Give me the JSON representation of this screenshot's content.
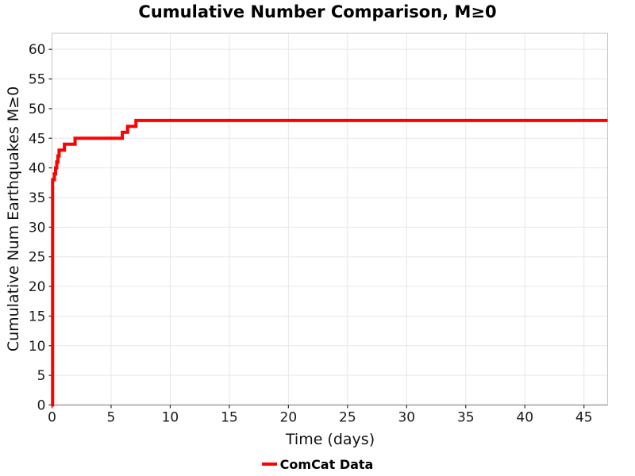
{
  "chart_data": {
    "type": "line",
    "step": "post",
    "title": "Cumulative Number Comparison, M≥0",
    "xlabel": "Time (days)",
    "ylabel": "Cumulative Num Earthquakes M≥0",
    "xlim": [
      0,
      47
    ],
    "ylim": [
      0,
      62.7
    ],
    "xticks": [
      0,
      5,
      10,
      15,
      20,
      25,
      30,
      35,
      40,
      45
    ],
    "yticks": [
      0,
      5,
      10,
      15,
      20,
      25,
      30,
      35,
      40,
      45,
      50,
      55,
      60
    ],
    "grid": true,
    "legend": {
      "position": "bottom",
      "entries": [
        {
          "label": "ComCat Data",
          "color": "#ff0000"
        }
      ]
    },
    "series": [
      {
        "name": "ComCat Data",
        "color": "#ff0000",
        "line_width": 4,
        "points": [
          [
            0,
            0
          ],
          [
            0.05,
            38
          ],
          [
            0.2,
            39
          ],
          [
            0.3,
            40
          ],
          [
            0.4,
            41
          ],
          [
            0.5,
            42
          ],
          [
            0.6,
            43
          ],
          [
            1.05,
            44
          ],
          [
            1.95,
            45
          ],
          [
            5.95,
            46
          ],
          [
            6.4,
            47
          ],
          [
            7.1,
            48
          ],
          [
            47,
            48
          ]
        ]
      }
    ]
  },
  "colors": {
    "line": "#ff0000",
    "grid": "#e7e7e7",
    "border": "#c6c6c6",
    "axis_line": "#8f8f8f",
    "tick_mark": "#262626",
    "tick_text": "#1a1a1a"
  }
}
